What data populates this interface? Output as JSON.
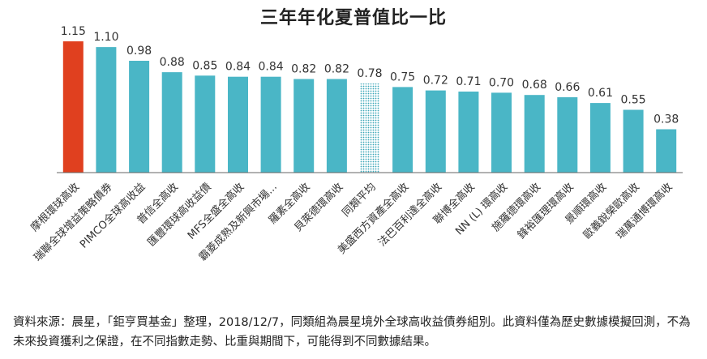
{
  "chart_data": {
    "type": "bar",
    "title": "三年年化夏普值比一比",
    "xlabel": "",
    "ylabel": "",
    "ylim": [
      0,
      1.2
    ],
    "grid": false,
    "legend": "none",
    "categories": [
      "摩根環球高收",
      "瑞聯全球增益策略債券",
      "PIMCO全球高收益",
      "普信全高收",
      "匯豐環球高收益債",
      "MFS全盛全高收",
      "霸菱成熟及新興市場...",
      "羅素全高收",
      "貝萊德環高收",
      "同類平均",
      "美盛西方資產全高收",
      "法巴百利達全高收",
      "聯博全高收",
      "NN (L) 環高收",
      "施羅德環高收",
      "鋒裕匯理環高收",
      "景順環高收",
      "歐義銳榮歐高收",
      "瑞萬通博環高收"
    ],
    "values": [
      1.15,
      1.1,
      0.98,
      0.88,
      0.85,
      0.84,
      0.84,
      0.82,
      0.82,
      0.78,
      0.75,
      0.72,
      0.71,
      0.7,
      0.68,
      0.66,
      0.61,
      0.55,
      0.38
    ],
    "value_labels": [
      "1.15",
      "1.10",
      "0.98",
      "0.88",
      "0.85",
      "0.84",
      "0.84",
      "0.82",
      "0.82",
      "0.78",
      "0.75",
      "0.72",
      "0.71",
      "0.70",
      "0.68",
      "0.66",
      "0.61",
      "0.55",
      "0.38"
    ],
    "colors": {
      "highlight": "#e0401f",
      "default": "#4ab6c6",
      "average": "#4ab6c6"
    }
  },
  "source_note": "資料來源：晨星，「鉅亨買基金」整理，2018/12/7，同類組為晨星境外全球高收益債券組別。此資料僅為歷史數據模擬回測，不為未來投資獲利之保證，在不同指數走勢、比重與期間下，可能得到不同數據結果。"
}
